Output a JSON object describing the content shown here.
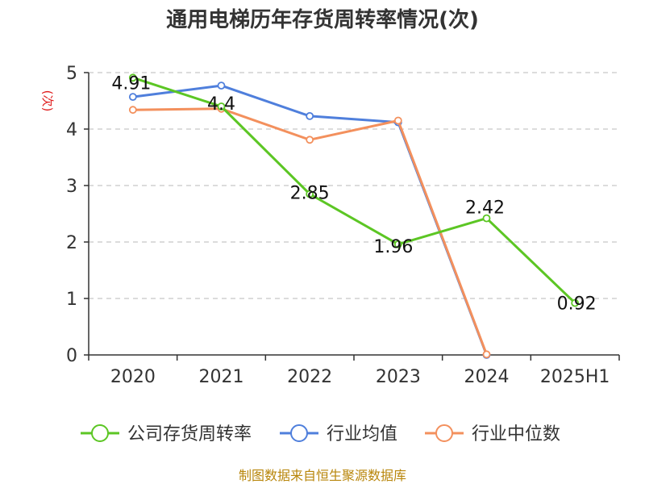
{
  "chart_data": {
    "type": "line",
    "title": "通用电梯历年存货周转率情况(次)",
    "ylabel": "(次)",
    "xlabel": "",
    "categories": [
      "2020",
      "2021",
      "2022",
      "2023",
      "2024",
      "2025H1"
    ],
    "ylim": [
      0,
      5
    ],
    "yticks": [
      0,
      1,
      2,
      3,
      4,
      5
    ],
    "grid": true,
    "legend_position": "bottom",
    "series": [
      {
        "name": "公司存货周转率",
        "color": "#5cc624",
        "values": [
          4.91,
          4.4,
          2.85,
          1.96,
          2.42,
          0.92
        ],
        "labels": [
          "4.91",
          "4.4",
          "2.85",
          "1.96",
          "2.42",
          "0.92"
        ]
      },
      {
        "name": "行业均值",
        "color": "#4f7fdc",
        "values": [
          4.57,
          4.77,
          4.23,
          4.12,
          0,
          null
        ]
      },
      {
        "name": "行业中位数",
        "color": "#f3905d",
        "values": [
          4.34,
          4.36,
          3.81,
          4.15,
          0.01,
          null
        ]
      }
    ],
    "source": "制图数据来自恒生聚源数据库"
  }
}
